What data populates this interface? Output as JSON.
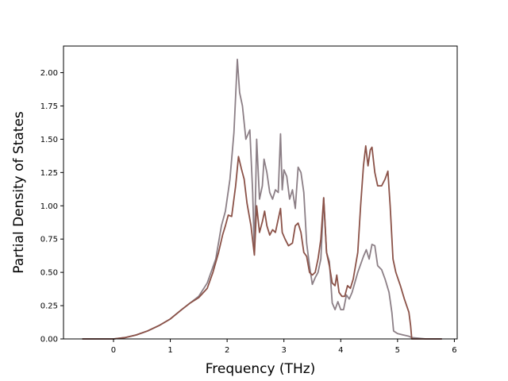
{
  "chart_data": {
    "type": "line",
    "title": "",
    "xlabel": "Frequency (THz)",
    "ylabel": "Partial Density of States",
    "xlim": [
      -0.88,
      6.05
    ],
    "ylim": [
      0,
      2.2
    ],
    "xticks": [
      0,
      1,
      2,
      3,
      4,
      5,
      6
    ],
    "xtick_labels": [
      "0",
      "1",
      "2",
      "3",
      "4",
      "5",
      "6"
    ],
    "yticks": [
      0,
      0.25,
      0.5,
      0.75,
      1.0,
      1.25,
      1.5,
      1.75,
      2.0
    ],
    "ytick_labels": [
      "0.00",
      "0.25",
      "0.50",
      "0.75",
      "1.00",
      "1.25",
      "1.50",
      "1.75",
      "2.00"
    ],
    "grid": false,
    "legend": "none",
    "series": [
      {
        "color": "#8c7f86",
        "points": [
          [
            -0.55,
            0
          ],
          [
            -0.2,
            0
          ],
          [
            0.0,
            0.0
          ],
          [
            0.2,
            0.01
          ],
          [
            0.4,
            0.03
          ],
          [
            0.6,
            0.06
          ],
          [
            0.8,
            0.1
          ],
          [
            1.0,
            0.15
          ],
          [
            1.2,
            0.22
          ],
          [
            1.35,
            0.27
          ],
          [
            1.5,
            0.32
          ],
          [
            1.65,
            0.42
          ],
          [
            1.8,
            0.6
          ],
          [
            1.9,
            0.85
          ],
          [
            1.97,
            0.96
          ],
          [
            2.05,
            1.2
          ],
          [
            2.12,
            1.55
          ],
          [
            2.18,
            2.1
          ],
          [
            2.22,
            1.85
          ],
          [
            2.27,
            1.75
          ],
          [
            2.33,
            1.5
          ],
          [
            2.4,
            1.57
          ],
          [
            2.45,
            1.1
          ],
          [
            2.48,
            0.65
          ],
          [
            2.52,
            1.5
          ],
          [
            2.57,
            1.05
          ],
          [
            2.62,
            1.15
          ],
          [
            2.65,
            1.35
          ],
          [
            2.7,
            1.25
          ],
          [
            2.75,
            1.1
          ],
          [
            2.8,
            1.05
          ],
          [
            2.85,
            1.12
          ],
          [
            2.9,
            1.1
          ],
          [
            2.94,
            1.54
          ],
          [
            2.97,
            1.12
          ],
          [
            3.0,
            1.27
          ],
          [
            3.05,
            1.22
          ],
          [
            3.1,
            1.05
          ],
          [
            3.15,
            1.12
          ],
          [
            3.2,
            0.98
          ],
          [
            3.25,
            1.29
          ],
          [
            3.3,
            1.25
          ],
          [
            3.35,
            1.1
          ],
          [
            3.4,
            0.72
          ],
          [
            3.45,
            0.55
          ],
          [
            3.5,
            0.41
          ],
          [
            3.55,
            0.46
          ],
          [
            3.6,
            0.5
          ],
          [
            3.65,
            0.6
          ],
          [
            3.7,
            1.06
          ],
          [
            3.75,
            0.65
          ],
          [
            3.8,
            0.58
          ],
          [
            3.85,
            0.27
          ],
          [
            3.9,
            0.22
          ],
          [
            3.95,
            0.28
          ],
          [
            4.0,
            0.22
          ],
          [
            4.05,
            0.22
          ],
          [
            4.1,
            0.33
          ],
          [
            4.15,
            0.3
          ],
          [
            4.2,
            0.35
          ],
          [
            4.3,
            0.5
          ],
          [
            4.4,
            0.62
          ],
          [
            4.45,
            0.67
          ],
          [
            4.5,
            0.6
          ],
          [
            4.55,
            0.71
          ],
          [
            4.6,
            0.7
          ],
          [
            4.65,
            0.55
          ],
          [
            4.72,
            0.52
          ],
          [
            4.78,
            0.45
          ],
          [
            4.85,
            0.35
          ],
          [
            4.9,
            0.2
          ],
          [
            4.93,
            0.06
          ],
          [
            5.0,
            0.04
          ],
          [
            5.1,
            0.03
          ],
          [
            5.2,
            0.02
          ],
          [
            5.25,
            0.01
          ],
          [
            5.5,
            0
          ],
          [
            5.78,
            0
          ]
        ]
      },
      {
        "color": "#8b5248",
        "points": [
          [
            -0.55,
            0
          ],
          [
            -0.2,
            0
          ],
          [
            0.0,
            0.0
          ],
          [
            0.2,
            0.01
          ],
          [
            0.4,
            0.03
          ],
          [
            0.6,
            0.06
          ],
          [
            0.8,
            0.1
          ],
          [
            1.0,
            0.15
          ],
          [
            1.2,
            0.22
          ],
          [
            1.35,
            0.27
          ],
          [
            1.5,
            0.31
          ],
          [
            1.65,
            0.38
          ],
          [
            1.75,
            0.5
          ],
          [
            1.85,
            0.65
          ],
          [
            1.92,
            0.78
          ],
          [
            1.97,
            0.85
          ],
          [
            2.02,
            0.93
          ],
          [
            2.08,
            0.92
          ],
          [
            2.15,
            1.15
          ],
          [
            2.2,
            1.37
          ],
          [
            2.25,
            1.28
          ],
          [
            2.3,
            1.2
          ],
          [
            2.35,
            1.02
          ],
          [
            2.42,
            0.85
          ],
          [
            2.48,
            0.63
          ],
          [
            2.52,
            1.0
          ],
          [
            2.57,
            0.8
          ],
          [
            2.62,
            0.88
          ],
          [
            2.66,
            0.96
          ],
          [
            2.7,
            0.85
          ],
          [
            2.75,
            0.78
          ],
          [
            2.8,
            0.82
          ],
          [
            2.85,
            0.8
          ],
          [
            2.9,
            0.9
          ],
          [
            2.94,
            0.98
          ],
          [
            2.97,
            0.8
          ],
          [
            3.02,
            0.75
          ],
          [
            3.08,
            0.7
          ],
          [
            3.15,
            0.72
          ],
          [
            3.2,
            0.85
          ],
          [
            3.25,
            0.87
          ],
          [
            3.3,
            0.8
          ],
          [
            3.35,
            0.65
          ],
          [
            3.4,
            0.62
          ],
          [
            3.45,
            0.5
          ],
          [
            3.5,
            0.48
          ],
          [
            3.55,
            0.5
          ],
          [
            3.6,
            0.6
          ],
          [
            3.65,
            0.75
          ],
          [
            3.7,
            1.06
          ],
          [
            3.75,
            0.65
          ],
          [
            3.8,
            0.55
          ],
          [
            3.85,
            0.42
          ],
          [
            3.9,
            0.4
          ],
          [
            3.93,
            0.48
          ],
          [
            3.97,
            0.35
          ],
          [
            4.02,
            0.32
          ],
          [
            4.07,
            0.32
          ],
          [
            4.12,
            0.4
          ],
          [
            4.17,
            0.38
          ],
          [
            4.22,
            0.45
          ],
          [
            4.3,
            0.65
          ],
          [
            4.35,
            1.0
          ],
          [
            4.4,
            1.3
          ],
          [
            4.44,
            1.45
          ],
          [
            4.48,
            1.3
          ],
          [
            4.52,
            1.42
          ],
          [
            4.55,
            1.44
          ],
          [
            4.6,
            1.25
          ],
          [
            4.65,
            1.15
          ],
          [
            4.72,
            1.15
          ],
          [
            4.78,
            1.2
          ],
          [
            4.83,
            1.26
          ],
          [
            4.87,
            1.0
          ],
          [
            4.92,
            0.6
          ],
          [
            4.97,
            0.5
          ],
          [
            5.05,
            0.4
          ],
          [
            5.12,
            0.3
          ],
          [
            5.2,
            0.2
          ],
          [
            5.23,
            0.1
          ],
          [
            5.25,
            0.0
          ],
          [
            5.5,
            0
          ],
          [
            5.78,
            0
          ]
        ]
      }
    ]
  }
}
